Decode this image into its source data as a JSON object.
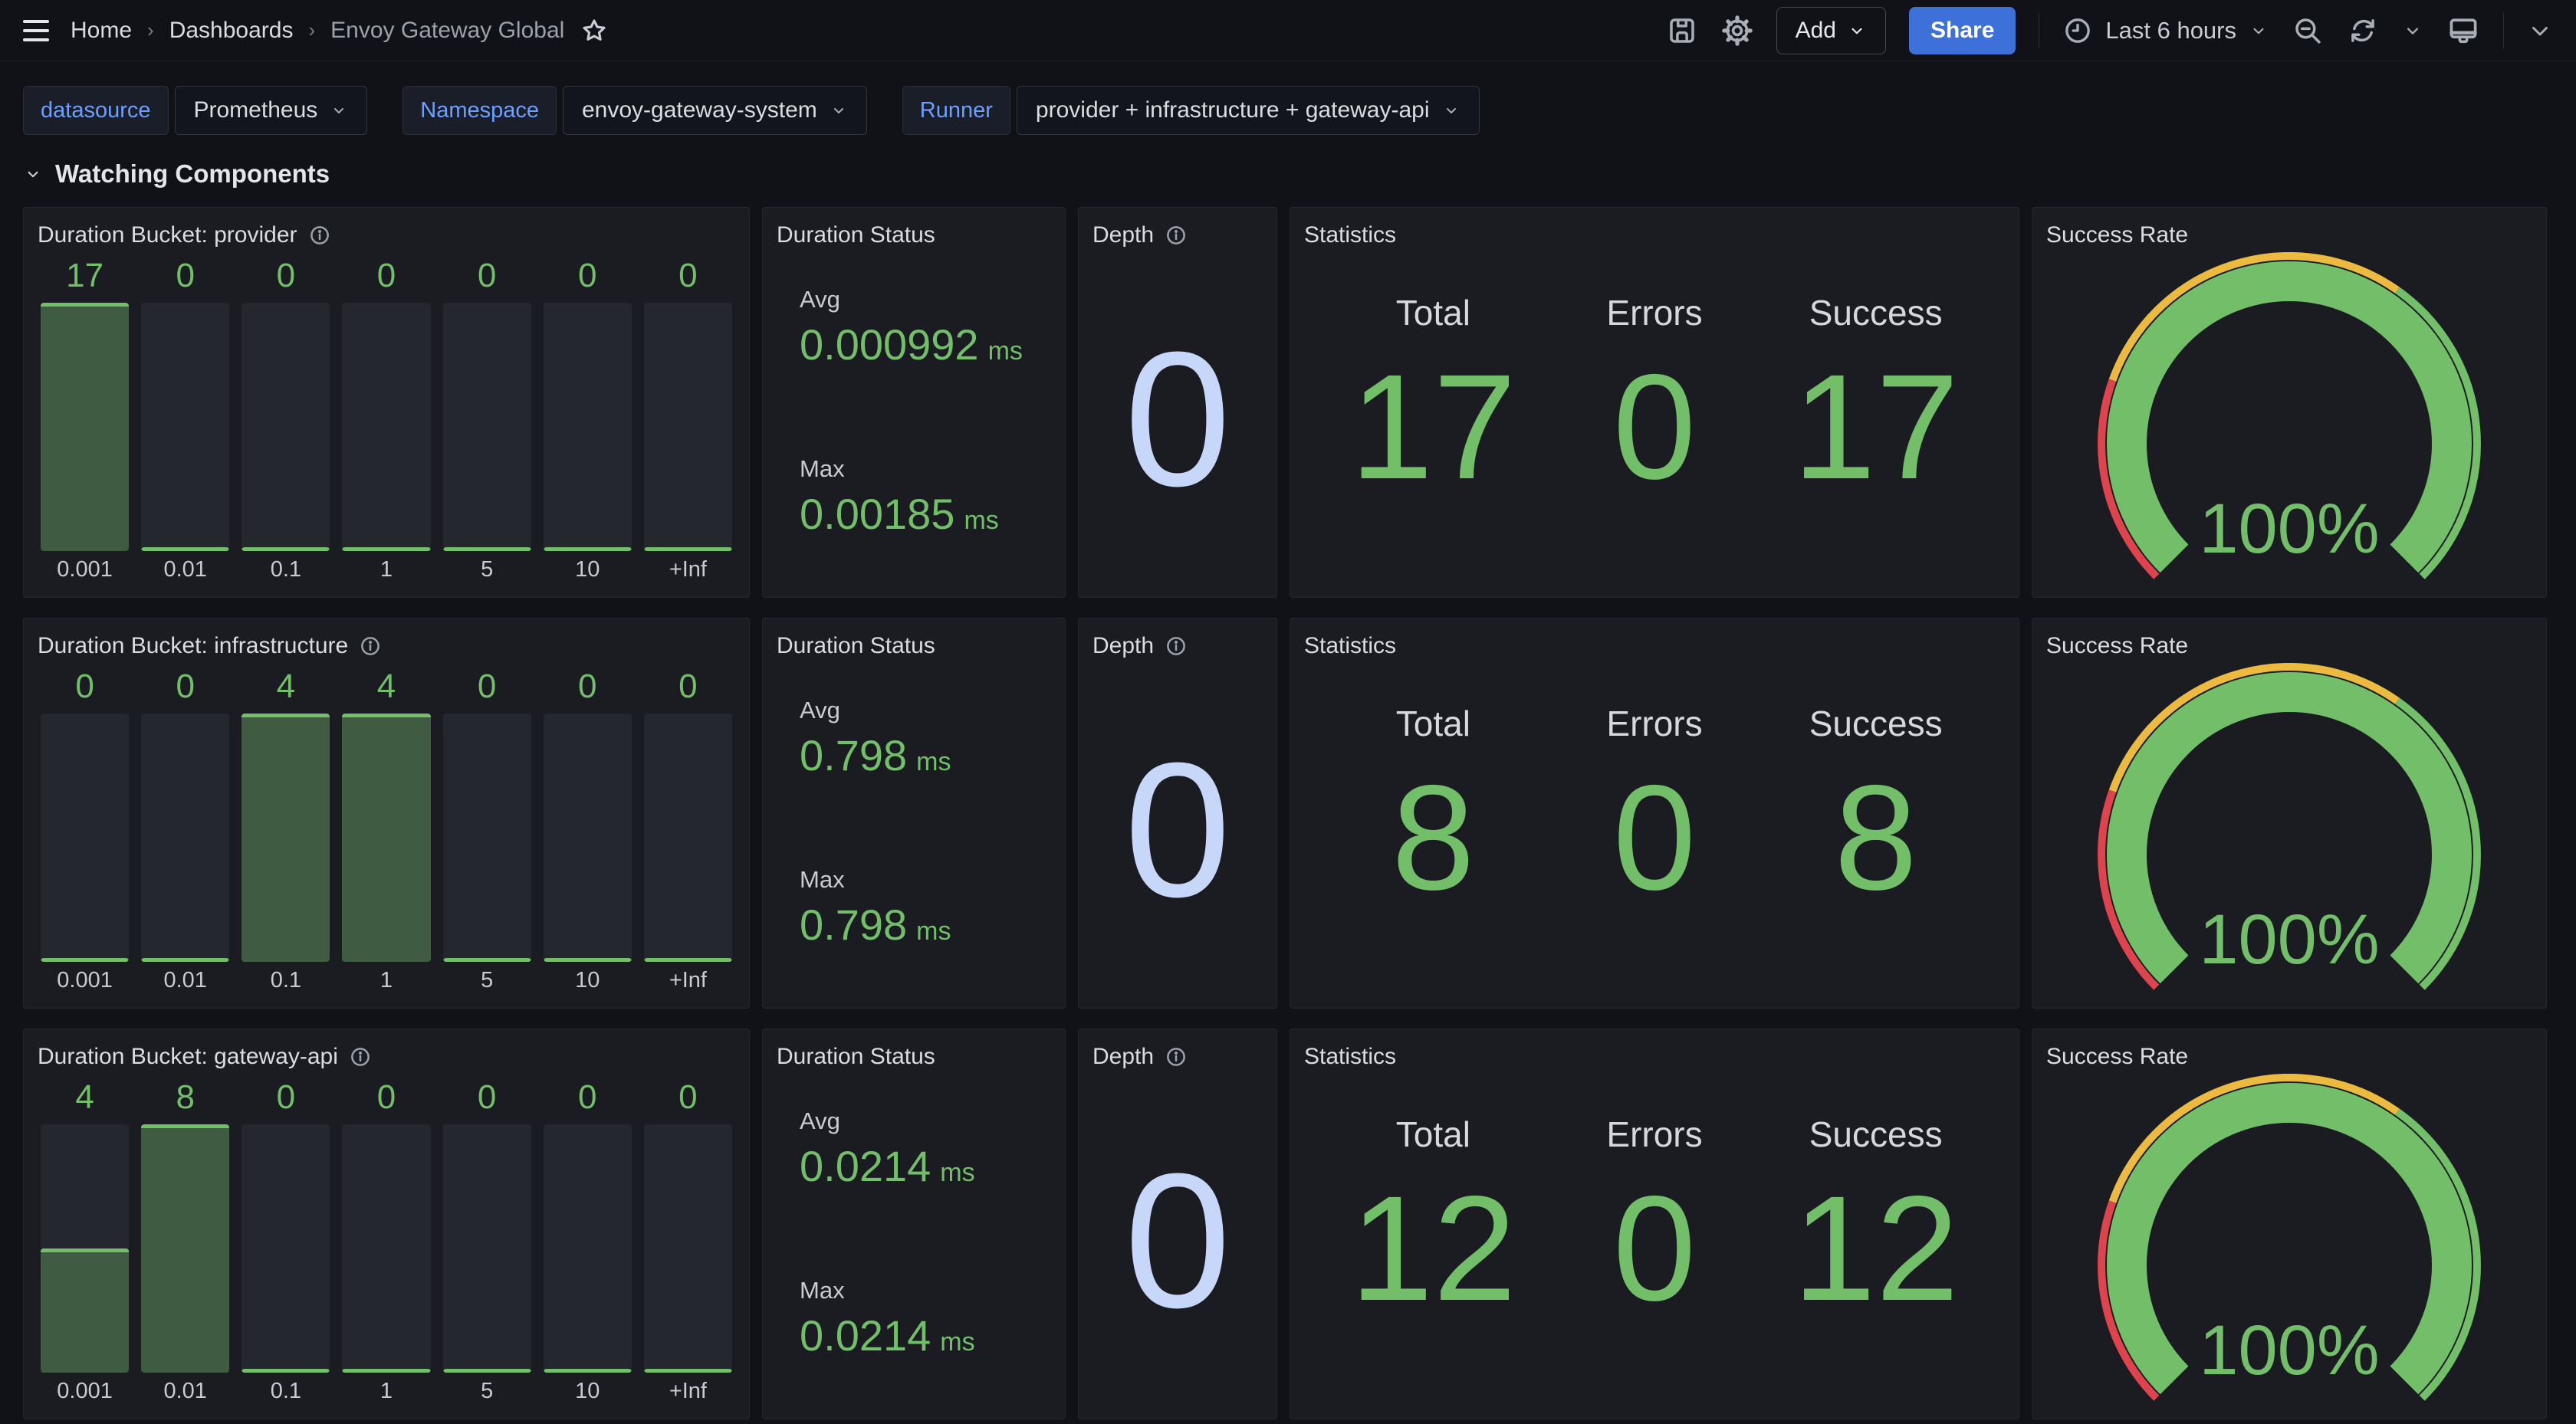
{
  "colors": {
    "green": "#73BF69",
    "green_fill": "rgba(115,191,105,0.35)",
    "yellow": "#ECBA3E",
    "red": "#E0434D",
    "light_blue": "#C6D7F9",
    "accent_blue": "#3D71D9",
    "label_blue": "#6E9FFF"
  },
  "topbar": {
    "breadcrumbs": [
      {
        "label": "Home"
      },
      {
        "label": "Dashboards"
      },
      {
        "label": "Envoy Gateway Global"
      }
    ],
    "add_button": "Add",
    "share_button": "Share",
    "time_range": "Last 6 hours"
  },
  "filters": [
    {
      "label": "datasource",
      "value": "Prometheus"
    },
    {
      "label": "Namespace",
      "value": "envoy-gateway-system"
    },
    {
      "label": "Runner",
      "value": "provider + infrastructure + gateway-api"
    }
  ],
  "section_title": "Watching Components",
  "bucket_labels": [
    "0.001",
    "0.01",
    "0.1",
    "1",
    "5",
    "10",
    "+Inf"
  ],
  "rows": [
    {
      "bucket": {
        "title": "Duration Bucket: provider",
        "type": "bar",
        "values": [
          17,
          0,
          0,
          0,
          0,
          0,
          0
        ]
      },
      "duration": {
        "title": "Duration Status",
        "avg_label": "Avg",
        "avg": "0.000992",
        "max_label": "Max",
        "max": "0.00185",
        "unit": "ms"
      },
      "depth": {
        "title": "Depth",
        "value": "0"
      },
      "stats": {
        "title": "Statistics",
        "columns": [
          "Total",
          "Errors",
          "Success"
        ],
        "values": [
          "17",
          "0",
          "17"
        ]
      },
      "gauge": {
        "title": "Success Rate",
        "type": "gauge",
        "percent": 100,
        "display": "100%"
      }
    },
    {
      "bucket": {
        "title": "Duration Bucket: infrastructure",
        "type": "bar",
        "values": [
          0,
          0,
          4,
          4,
          0,
          0,
          0
        ]
      },
      "duration": {
        "title": "Duration Status",
        "avg_label": "Avg",
        "avg": "0.798",
        "max_label": "Max",
        "max": "0.798",
        "unit": "ms"
      },
      "depth": {
        "title": "Depth",
        "value": "0"
      },
      "stats": {
        "title": "Statistics",
        "columns": [
          "Total",
          "Errors",
          "Success"
        ],
        "values": [
          "8",
          "0",
          "8"
        ]
      },
      "gauge": {
        "title": "Success Rate",
        "type": "gauge",
        "percent": 100,
        "display": "100%"
      }
    },
    {
      "bucket": {
        "title": "Duration Bucket: gateway-api",
        "type": "bar",
        "values": [
          4,
          8,
          0,
          0,
          0,
          0,
          0
        ]
      },
      "duration": {
        "title": "Duration Status",
        "avg_label": "Avg",
        "avg": "0.0214",
        "max_label": "Max",
        "max": "0.0214",
        "unit": "ms"
      },
      "depth": {
        "title": "Depth",
        "value": "0"
      },
      "stats": {
        "title": "Statistics",
        "columns": [
          "Total",
          "Errors",
          "Success"
        ],
        "values": [
          "12",
          "0",
          "12"
        ]
      },
      "gauge": {
        "title": "Success Rate",
        "type": "gauge",
        "percent": 100,
        "display": "100%"
      }
    }
  ]
}
